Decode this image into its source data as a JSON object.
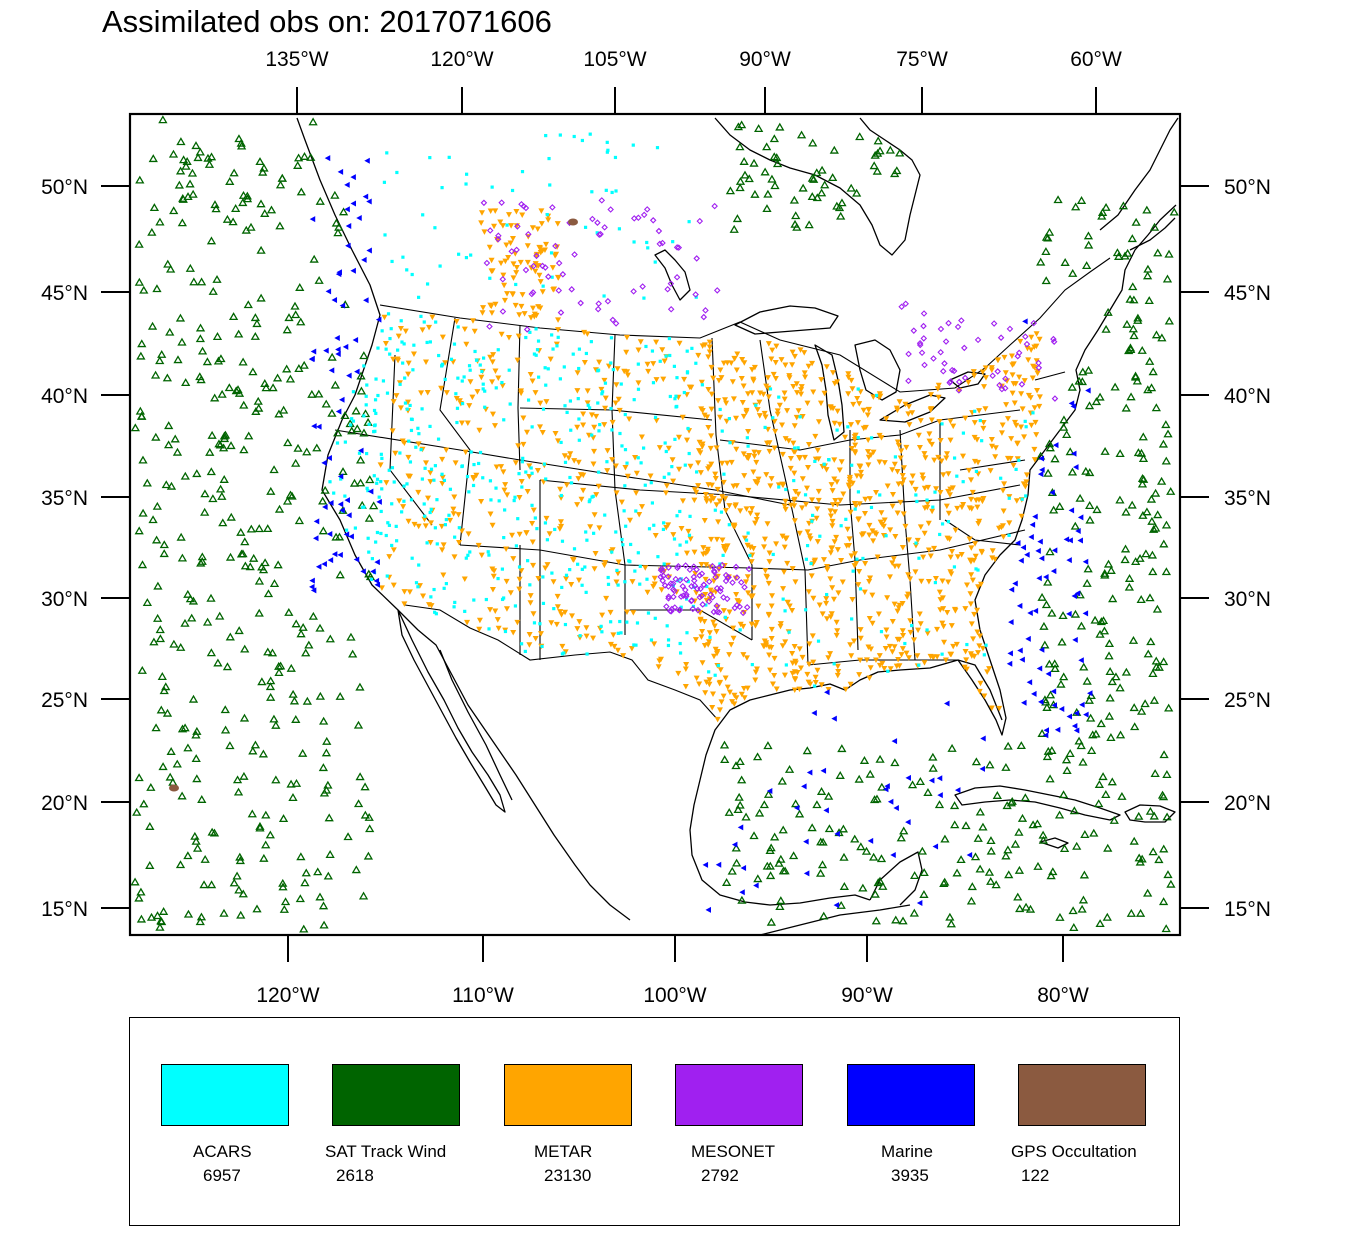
{
  "title": "Assimilated obs on: 2017071606",
  "map": {
    "top_lon_labels": [
      "135°W",
      "120°W",
      "105°W",
      "90°W",
      "75°W",
      "60°W"
    ],
    "bottom_lon_labels": [
      "120°W",
      "110°W",
      "100°W",
      "90°W",
      "80°W"
    ],
    "lat_labels": [
      "50°N",
      "45°N",
      "40°N",
      "35°N",
      "30°N",
      "25°N",
      "20°N",
      "15°N"
    ],
    "basemap": "North America coastlines and US state boundaries",
    "observation_symbols": {
      "ACARS": "filled square",
      "SAT Track Wind": "open triangle",
      "METAR": "filled inverted triangle",
      "MESONET": "open diamond",
      "Marine": "filled left-pointing triangle",
      "GPS Occultation": "filled blob"
    }
  },
  "legend": {
    "items": [
      {
        "name": "ACARS",
        "count": "6957",
        "color": "#00ffff"
      },
      {
        "name": "SAT Track Wind",
        "count": "2618",
        "color": "#006400"
      },
      {
        "name": "METAR",
        "count": "23130",
        "color": "#ffa500"
      },
      {
        "name": "MESONET",
        "count": "2792",
        "color": "#a020f0"
      },
      {
        "name": "Marine",
        "count": "3935",
        "color": "#0000ff"
      },
      {
        "name": "GPS Occultation",
        "count": "122",
        "color": "#8b5a40"
      }
    ]
  }
}
